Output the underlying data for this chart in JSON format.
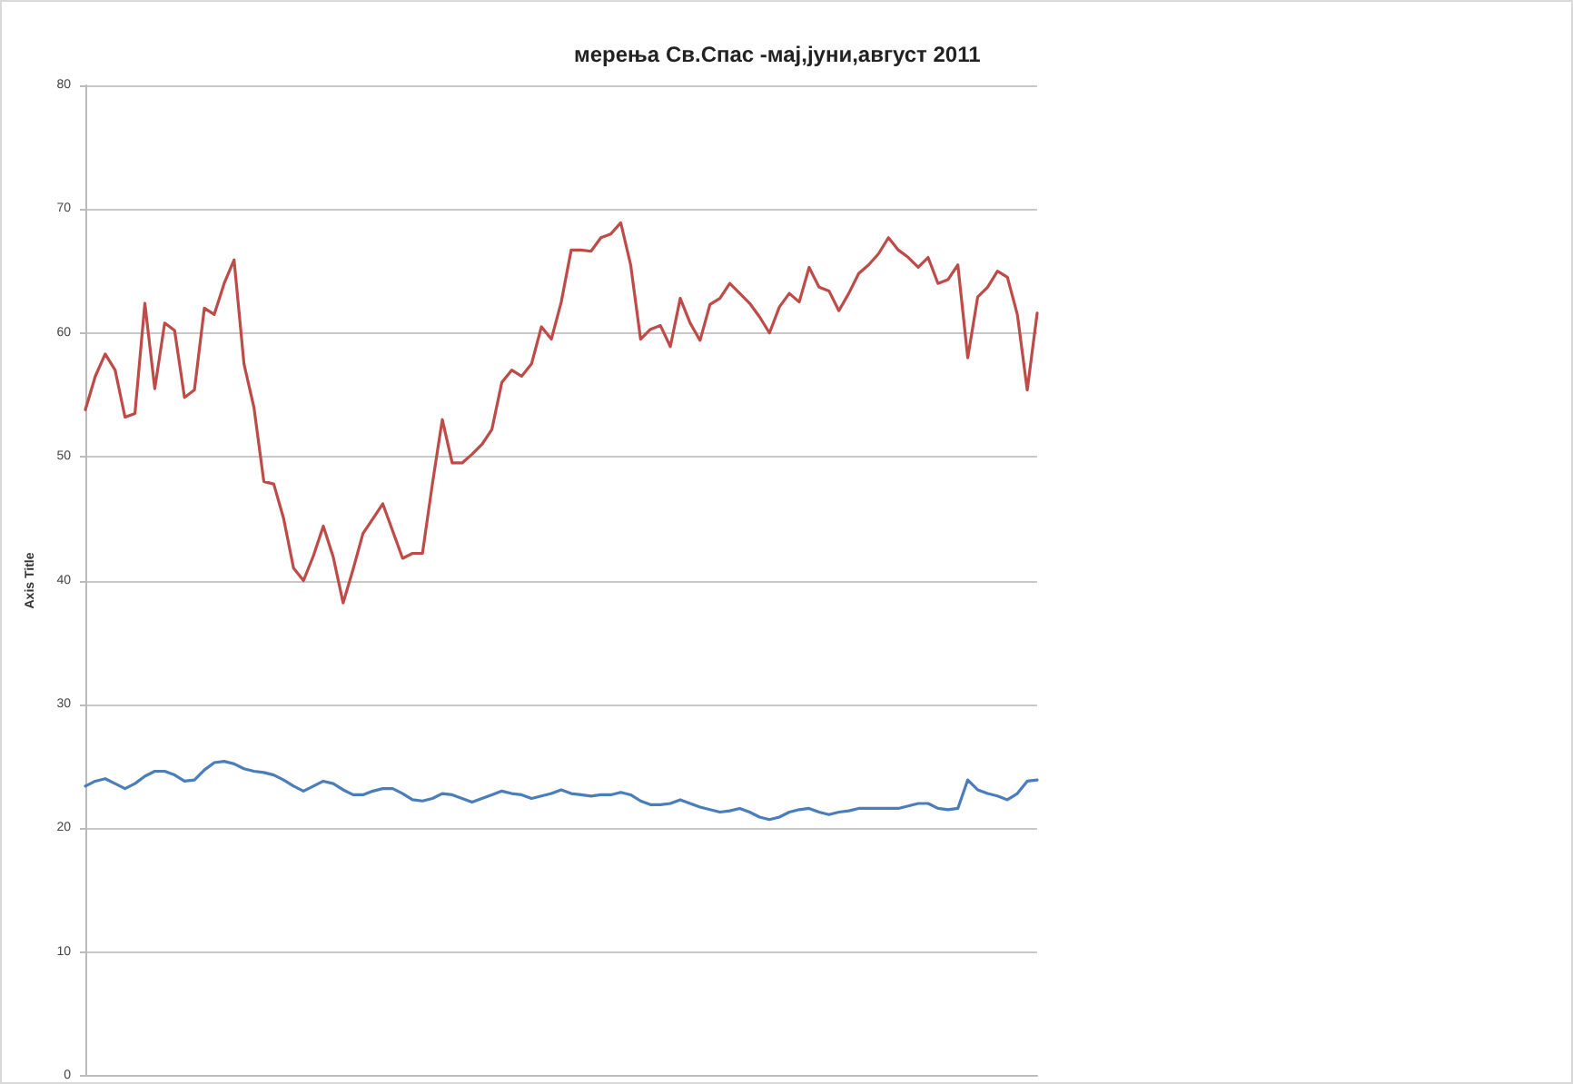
{
  "chart_data": {
    "type": "line",
    "title": "мерења Св.Спас -мај,јуни,август 2011",
    "ylabel": "Axis Title",
    "categories": [
      null,
      null,
      null,
      null,
      null,
      null,
      null,
      null,
      null,
      null,
      null,
      null,
      null,
      null,
      null,
      null,
      null,
      null,
      null,
      null,
      null,
      null,
      null,
      null,
      null,
      null,
      null,
      null,
      null,
      null,
      null,
      null,
      null,
      null,
      null,
      null,
      null,
      null,
      null,
      null,
      null,
      null,
      null,
      null,
      null,
      null,
      null,
      null,
      null,
      null,
      null,
      null,
      null,
      null,
      null,
      null,
      null,
      null,
      null,
      null,
      null,
      null,
      null,
      null,
      null,
      null,
      null,
      null,
      null,
      null,
      null,
      null,
      null,
      null,
      null,
      null,
      null,
      null,
      null,
      null,
      null,
      null,
      null,
      null,
      null,
      null,
      null,
      null,
      null,
      null,
      null,
      null,
      null,
      null,
      null,
      null,
      null
    ],
    "series": [
      {
        "color": "#4a7ebb",
        "values": [
          23.4,
          23.8,
          24.0,
          23.6,
          23.2,
          23.6,
          24.2,
          24.6,
          24.6,
          24.3,
          23.8,
          23.9,
          24.7,
          25.3,
          25.4,
          25.2,
          24.8,
          24.6,
          24.5,
          24.3,
          23.9,
          23.4,
          23.0,
          23.4,
          23.8,
          23.6,
          23.1,
          22.7,
          22.7,
          23.0,
          23.2,
          23.2,
          22.8,
          22.3,
          22.2,
          22.4,
          22.8,
          22.7,
          22.4,
          22.1,
          22.4,
          22.7,
          23.0,
          22.8,
          22.7,
          22.4,
          22.6,
          22.8,
          23.1,
          22.8,
          22.7,
          22.6,
          22.7,
          22.7,
          22.9,
          22.7,
          22.2,
          21.9,
          21.9,
          22.0,
          22.3,
          22.0,
          21.7,
          21.5,
          21.3,
          21.4,
          21.6,
          21.3,
          20.9,
          20.7,
          20.9,
          21.3,
          21.5,
          21.6,
          21.3,
          21.1,
          21.3,
          21.4,
          21.6,
          21.6,
          21.6,
          21.6,
          21.6,
          21.8,
          22.0,
          22.0,
          21.6,
          21.5,
          21.6,
          23.9,
          23.1,
          22.8,
          22.6,
          22.3,
          22.8,
          23.8,
          23.9
        ]
      },
      {
        "color": "#be4b48",
        "values": [
          53.8,
          56.5,
          58.3,
          57.0,
          53.2,
          53.5,
          62.4,
          55.5,
          60.8,
          60.2,
          54.8,
          55.4,
          62.0,
          61.5,
          64.0,
          65.9,
          57.5,
          54.0,
          48.0,
          47.8,
          45.0,
          41.0,
          40.0,
          42.0,
          44.4,
          41.9,
          38.2,
          40.9,
          43.8,
          45.0,
          46.2,
          44.0,
          41.8,
          42.2,
          42.2,
          47.8,
          53.0,
          49.5,
          49.5,
          50.2,
          51.0,
          52.2,
          56.0,
          57.0,
          56.5,
          57.5,
          60.5,
          59.5,
          62.5,
          66.7,
          66.7,
          66.6,
          67.7,
          68.0,
          68.9,
          65.5,
          59.5,
          60.3,
          60.6,
          58.9,
          62.8,
          60.8,
          59.4,
          62.3,
          62.8,
          64.0,
          63.2,
          62.4,
          61.3,
          60.0,
          62.1,
          63.2,
          62.5,
          65.3,
          63.7,
          63.4,
          61.8,
          63.2,
          64.8,
          65.5,
          66.4,
          67.7,
          66.7,
          66.1,
          65.3,
          66.1,
          64.0,
          64.3,
          65.5,
          58.0,
          62.9,
          63.7,
          65.0,
          64.5,
          61.5,
          55.4,
          61.6
        ]
      }
    ],
    "ylim": [
      0,
      80
    ],
    "yticks": [
      0,
      10,
      20,
      30,
      40,
      50,
      60,
      70,
      80
    ],
    "grid": "y",
    "line_style": "solid"
  }
}
